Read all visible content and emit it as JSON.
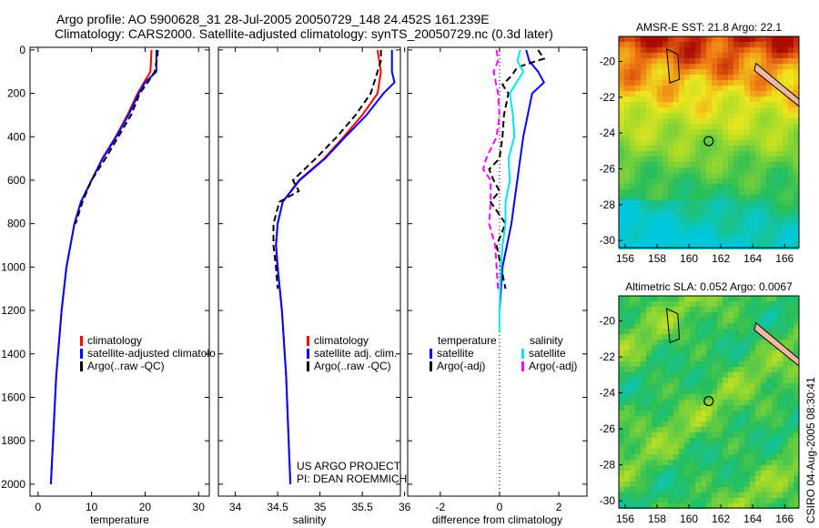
{
  "title_line1": "Argo profile: AO 5900628_31 28-Jul-2005 20050729_148 24.452S 161.239E",
  "title_line2": "Climatology: CARS2000. Satellite-adjusted climatology: synTS_20050729.nc (0.3d later)",
  "side_label": "CSIRO 04-Aug-2005 08:30:41",
  "credit": [
    "US ARGO PROJECT",
    "PI: DEAN ROEMMICH"
  ],
  "colors": {
    "climatology": "#ff0000",
    "satellite": "#0000ff",
    "argo": "#000000",
    "sal_satellite": "#00e5ee",
    "sal_argo": "#ff00ff"
  },
  "chart_data": [
    {
      "type": "line",
      "xlabel": "temperature",
      "xlim": [
        -1.5,
        32
      ],
      "xticks": [
        0,
        10,
        20,
        30
      ],
      "ylim": [
        2055,
        -12
      ],
      "yticks": [
        0,
        200,
        400,
        600,
        800,
        1000,
        1200,
        1400,
        1600,
        1800,
        2000
      ],
      "legend": [
        "climatology",
        "satellite-adjusted climatolo",
        "Argo(..raw -QC)"
      ],
      "series": [
        {
          "name": "climatology",
          "depth": [
            0,
            100,
            200,
            300,
            400,
            500,
            600,
            700,
            800,
            1000,
            1200,
            1500,
            2000
          ],
          "values": [
            21.2,
            21,
            18.6,
            16.7,
            14.5,
            12,
            10,
            8,
            6.8,
            5.3,
            4.4,
            3.4,
            2.4
          ]
        },
        {
          "name": "satellite-adjusted climatology",
          "depth": [
            0,
            100,
            150,
            200,
            300,
            400,
            500,
            600,
            700,
            800,
            1000,
            1200,
            1500,
            2000
          ],
          "values": [
            22.1,
            22.1,
            20,
            18.8,
            16.9,
            14.6,
            12.1,
            10,
            8,
            6.8,
            5.3,
            4.4,
            3.4,
            2.4
          ]
        },
        {
          "name": "Argo(..raw -QC)",
          "depth": [
            0,
            30,
            100,
            150,
            200,
            300,
            400,
            500,
            600,
            700,
            800
          ],
          "values": [
            22.4,
            22.3,
            21.8,
            20.5,
            19,
            17.4,
            15,
            12.6,
            10,
            8.3,
            7
          ]
        }
      ]
    },
    {
      "type": "line",
      "xlabel": "salinity",
      "xlim": [
        33.8,
        35.95
      ],
      "xticks": [
        34,
        34.5,
        35,
        35.5,
        36
      ],
      "ylim": [
        2055,
        -12
      ],
      "legend": [
        "climatology",
        "satellite adj. clim.",
        "Argo(..raw -QC)"
      ],
      "series": [
        {
          "name": "climatology",
          "depth": [
            0,
            100,
            200,
            300,
            400,
            500,
            600,
            700,
            800,
            900,
            1000,
            1200,
            1500,
            2000
          ],
          "values": [
            35.68,
            35.72,
            35.68,
            35.5,
            35.28,
            35.05,
            34.75,
            34.56,
            34.5,
            34.48,
            34.5,
            34.55,
            34.6,
            34.65
          ]
        },
        {
          "name": "satellite adj. clim.",
          "depth": [
            0,
            100,
            150,
            200,
            300,
            400,
            500,
            600,
            700,
            800,
            900,
            1000,
            1200,
            1500,
            2000
          ],
          "values": [
            35.85,
            35.85,
            35.88,
            35.75,
            35.55,
            35.3,
            35.06,
            34.76,
            34.56,
            34.5,
            34.48,
            34.5,
            34.55,
            34.6,
            34.65
          ]
        },
        {
          "name": "Argo(..raw -QC)",
          "depth": [
            0,
            50,
            100,
            200,
            300,
            400,
            500,
            600,
            650,
            700,
            800,
            900,
            1000,
            1100
          ],
          "values": [
            35.72,
            35.72,
            35.68,
            35.6,
            35.42,
            35.2,
            34.95,
            34.68,
            34.75,
            34.52,
            34.45,
            34.45,
            34.48,
            34.5
          ]
        }
      ]
    },
    {
      "type": "line",
      "xlabel": "difference from climatology",
      "xlim": [
        -3.1,
        2.95
      ],
      "xticks": [
        -2,
        0,
        2
      ],
      "ylim": [
        2055,
        -12
      ],
      "legend_headers": [
        "temperature",
        "salinity"
      ],
      "legend": [
        "satellite",
        "Argo(-adj)",
        "satellite",
        "Argo(-adj)"
      ],
      "series": [
        {
          "name": "temperature satellite",
          "depth": [
            0,
            50,
            100,
            150,
            200,
            300,
            400,
            500,
            600,
            700,
            800,
            900,
            1000,
            1100,
            1200
          ],
          "values": [
            0.9,
            1.0,
            1.3,
            1.5,
            1.1,
            0.95,
            0.8,
            0.7,
            0.6,
            0.5,
            0.4,
            0.25,
            0.1,
            0.05,
            0
          ]
        },
        {
          "name": "temperature Argo(-adj)",
          "depth": [
            0,
            40,
            80,
            120,
            160,
            200,
            300,
            400,
            500,
            550,
            600,
            650,
            700,
            800,
            900,
            1000,
            1100
          ],
          "values": [
            1.3,
            1.5,
            0.6,
            0.4,
            0.1,
            0.3,
            0.15,
            0.1,
            0.0,
            -0.35,
            -0.2,
            0.0,
            -0.3,
            0.2,
            -0.1,
            0.05,
            0.2
          ]
        },
        {
          "name": "salinity satellite",
          "depth": [
            0,
            50,
            100,
            200,
            300,
            400,
            500,
            600,
            700,
            800,
            900,
            1000,
            1100,
            1200,
            1300
          ],
          "values": [
            0.7,
            0.6,
            0.8,
            0.35,
            0.45,
            0.5,
            0.3,
            0.35,
            0.2,
            0.2,
            0.1,
            0.05,
            0.02,
            0,
            0
          ]
        },
        {
          "name": "salinity Argo(-adj)",
          "depth": [
            0,
            50,
            100,
            200,
            300,
            400,
            500,
            550,
            600,
            700,
            800,
            900,
            1000,
            1100
          ],
          "values": [
            -0.1,
            -0.05,
            -0.2,
            -0.05,
            0,
            -0.1,
            -0.45,
            -0.55,
            -0.3,
            -0.3,
            -0.35,
            -0.15,
            -0.1,
            -0.05
          ]
        }
      ]
    },
    {
      "type": "heatmap",
      "title": "AMSR-E SST: 21.8 Argo: 22.1",
      "xlim": [
        155.6,
        166.9
      ],
      "ylim": [
        -30.4,
        -18.6
      ],
      "xticks": [
        156,
        158,
        160,
        162,
        164,
        166
      ],
      "yticks": [
        -20,
        -22,
        -24,
        -26,
        -28,
        -30
      ],
      "marker": [
        161.239,
        -24.452
      ]
    },
    {
      "type": "heatmap",
      "title": "Altimetric SLA: 0.052 Argo: 0.0067",
      "xlim": [
        155.6,
        166.9
      ],
      "ylim": [
        -30.4,
        -18.6
      ],
      "xticks": [
        156,
        158,
        160,
        162,
        164,
        166
      ],
      "yticks": [
        -20,
        -22,
        -24,
        -26,
        -28,
        -30
      ],
      "marker": [
        161.239,
        -24.452
      ]
    }
  ]
}
